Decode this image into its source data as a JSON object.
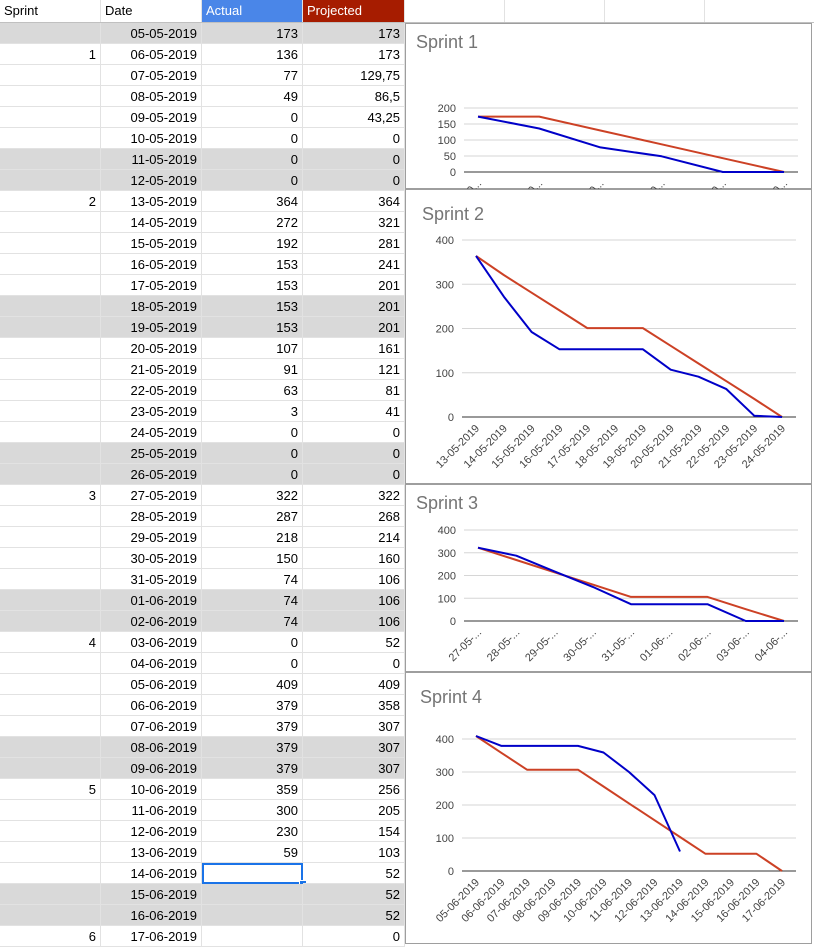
{
  "headers": {
    "sprint": "Sprint",
    "date": "Date",
    "actual": "Actual",
    "projected": "Projected"
  },
  "colors": {
    "actual_header": "#4a86e8",
    "projected_header": "#a61c00",
    "actual_line": "#0000c8",
    "projected_line": "#cc4125",
    "shade": "#d9d9d9"
  },
  "rows": [
    {
      "sprint": "",
      "date": "05-05-2019",
      "actual": "173",
      "projected": "173",
      "shaded": true
    },
    {
      "sprint": "1",
      "date": "06-05-2019",
      "actual": "136",
      "projected": "173",
      "shaded": false
    },
    {
      "sprint": "",
      "date": "07-05-2019",
      "actual": "77",
      "projected": "129,75",
      "shaded": false
    },
    {
      "sprint": "",
      "date": "08-05-2019",
      "actual": "49",
      "projected": "86,5",
      "shaded": false
    },
    {
      "sprint": "",
      "date": "09-05-2019",
      "actual": "0",
      "projected": "43,25",
      "shaded": false
    },
    {
      "sprint": "",
      "date": "10-05-2019",
      "actual": "0",
      "projected": "0",
      "shaded": false
    },
    {
      "sprint": "",
      "date": "11-05-2019",
      "actual": "0",
      "projected": "0",
      "shaded": true
    },
    {
      "sprint": "",
      "date": "12-05-2019",
      "actual": "0",
      "projected": "0",
      "shaded": true
    },
    {
      "sprint": "2",
      "date": "13-05-2019",
      "actual": "364",
      "projected": "364",
      "shaded": false
    },
    {
      "sprint": "",
      "date": "14-05-2019",
      "actual": "272",
      "projected": "321",
      "shaded": false
    },
    {
      "sprint": "",
      "date": "15-05-2019",
      "actual": "192",
      "projected": "281",
      "shaded": false
    },
    {
      "sprint": "",
      "date": "16-05-2019",
      "actual": "153",
      "projected": "241",
      "shaded": false
    },
    {
      "sprint": "",
      "date": "17-05-2019",
      "actual": "153",
      "projected": "201",
      "shaded": false
    },
    {
      "sprint": "",
      "date": "18-05-2019",
      "actual": "153",
      "projected": "201",
      "shaded": true
    },
    {
      "sprint": "",
      "date": "19-05-2019",
      "actual": "153",
      "projected": "201",
      "shaded": true
    },
    {
      "sprint": "",
      "date": "20-05-2019",
      "actual": "107",
      "projected": "161",
      "shaded": false
    },
    {
      "sprint": "",
      "date": "21-05-2019",
      "actual": "91",
      "projected": "121",
      "shaded": false
    },
    {
      "sprint": "",
      "date": "22-05-2019",
      "actual": "63",
      "projected": "81",
      "shaded": false
    },
    {
      "sprint": "",
      "date": "23-05-2019",
      "actual": "3",
      "projected": "41",
      "shaded": false
    },
    {
      "sprint": "",
      "date": "24-05-2019",
      "actual": "0",
      "projected": "0",
      "shaded": false
    },
    {
      "sprint": "",
      "date": "25-05-2019",
      "actual": "0",
      "projected": "0",
      "shaded": true
    },
    {
      "sprint": "",
      "date": "26-05-2019",
      "actual": "0",
      "projected": "0",
      "shaded": true
    },
    {
      "sprint": "3",
      "date": "27-05-2019",
      "actual": "322",
      "projected": "322",
      "shaded": false
    },
    {
      "sprint": "",
      "date": "28-05-2019",
      "actual": "287",
      "projected": "268",
      "shaded": false
    },
    {
      "sprint": "",
      "date": "29-05-2019",
      "actual": "218",
      "projected": "214",
      "shaded": false
    },
    {
      "sprint": "",
      "date": "30-05-2019",
      "actual": "150",
      "projected": "160",
      "shaded": false
    },
    {
      "sprint": "",
      "date": "31-05-2019",
      "actual": "74",
      "projected": "106",
      "shaded": false
    },
    {
      "sprint": "",
      "date": "01-06-2019",
      "actual": "74",
      "projected": "106",
      "shaded": true
    },
    {
      "sprint": "",
      "date": "02-06-2019",
      "actual": "74",
      "projected": "106",
      "shaded": true
    },
    {
      "sprint": "4",
      "date": "03-06-2019",
      "actual": "0",
      "projected": "52",
      "shaded": false
    },
    {
      "sprint": "",
      "date": "04-06-2019",
      "actual": "0",
      "projected": "0",
      "shaded": false
    },
    {
      "sprint": "",
      "date": "05-06-2019",
      "actual": "409",
      "projected": "409",
      "shaded": false
    },
    {
      "sprint": "",
      "date": "06-06-2019",
      "actual": "379",
      "projected": "358",
      "shaded": false
    },
    {
      "sprint": "",
      "date": "07-06-2019",
      "actual": "379",
      "projected": "307",
      "shaded": false
    },
    {
      "sprint": "",
      "date": "08-06-2019",
      "actual": "379",
      "projected": "307",
      "shaded": true
    },
    {
      "sprint": "",
      "date": "09-06-2019",
      "actual": "379",
      "projected": "307",
      "shaded": true
    },
    {
      "sprint": "5",
      "date": "10-06-2019",
      "actual": "359",
      "projected": "256",
      "shaded": false
    },
    {
      "sprint": "",
      "date": "11-06-2019",
      "actual": "300",
      "projected": "205",
      "shaded": false
    },
    {
      "sprint": "",
      "date": "12-06-2019",
      "actual": "230",
      "projected": "154",
      "shaded": false
    },
    {
      "sprint": "",
      "date": "13-06-2019",
      "actual": "59",
      "projected": "103",
      "shaded": false
    },
    {
      "sprint": "",
      "date": "14-06-2019",
      "actual": "",
      "projected": "52",
      "shaded": false,
      "selected": true
    },
    {
      "sprint": "",
      "date": "15-06-2019",
      "actual": "",
      "projected": "52",
      "shaded": true
    },
    {
      "sprint": "",
      "date": "16-06-2019",
      "actual": "",
      "projected": "52",
      "shaded": true
    },
    {
      "sprint": "6",
      "date": "17-06-2019",
      "actual": "",
      "projected": "0",
      "shaded": false
    }
  ],
  "chart_data": [
    {
      "type": "line",
      "title": "Sprint 1",
      "categories": [
        "05-0...",
        "06-0...",
        "07-0...",
        "08-0...",
        "09-0...",
        "10-0..."
      ],
      "ylim": [
        0,
        200
      ],
      "yticks": [
        0,
        50,
        100,
        150,
        200
      ],
      "grid": true,
      "series": [
        {
          "key": "actual",
          "values": [
            173,
            136,
            77,
            49,
            0,
            0
          ]
        },
        {
          "key": "projected",
          "values": [
            173,
            173,
            129.75,
            86.5,
            43.25,
            0
          ]
        }
      ]
    },
    {
      "type": "line",
      "title": "Sprint 2",
      "categories": [
        "13-05-2019",
        "14-05-2019",
        "15-05-2019",
        "16-05-2019",
        "17-05-2019",
        "18-05-2019",
        "19-05-2019",
        "20-05-2019",
        "21-05-2019",
        "22-05-2019",
        "23-05-2019",
        "24-05-2019"
      ],
      "ylim": [
        0,
        400
      ],
      "yticks": [
        0,
        100,
        200,
        300,
        400
      ],
      "grid": true,
      "series": [
        {
          "key": "actual",
          "values": [
            364,
            272,
            192,
            153,
            153,
            153,
            153,
            107,
            91,
            63,
            3,
            0
          ]
        },
        {
          "key": "projected",
          "values": [
            364,
            321,
            281,
            241,
            201,
            201,
            201,
            161,
            121,
            81,
            41,
            0
          ]
        }
      ]
    },
    {
      "type": "line",
      "title": "Sprint 3",
      "categories": [
        "27-05-...",
        "28-05-...",
        "29-05-...",
        "30-05-...",
        "31-05-...",
        "01-06-...",
        "02-06-...",
        "03-06-...",
        "04-06-..."
      ],
      "ylim": [
        0,
        400
      ],
      "yticks": [
        0,
        100,
        200,
        300,
        400
      ],
      "grid": true,
      "series": [
        {
          "key": "actual",
          "values": [
            322,
            287,
            218,
            150,
            74,
            74,
            74,
            0,
            0
          ]
        },
        {
          "key": "projected",
          "values": [
            322,
            268,
            214,
            160,
            106,
            106,
            106,
            52,
            0
          ]
        }
      ]
    },
    {
      "type": "line",
      "title": "Sprint 4",
      "categories": [
        "05-06-2019",
        "06-06-2019",
        "07-06-2019",
        "08-06-2019",
        "09-06-2019",
        "10-06-2019",
        "11-06-2019",
        "12-06-2019",
        "13-06-2019",
        "14-06-2019",
        "15-06-2019",
        "16-06-2019",
        "17-06-2019"
      ],
      "ylim": [
        0,
        400
      ],
      "yticks": [
        0,
        100,
        200,
        300,
        400
      ],
      "grid": true,
      "series": [
        {
          "key": "actual",
          "values": [
            409,
            379,
            379,
            379,
            379,
            359,
            300,
            230,
            59,
            null,
            null,
            null,
            null
          ]
        },
        {
          "key": "projected",
          "values": [
            409,
            358,
            307,
            307,
            307,
            256,
            205,
            154,
            103,
            52,
            52,
            52,
            0
          ]
        }
      ]
    }
  ]
}
